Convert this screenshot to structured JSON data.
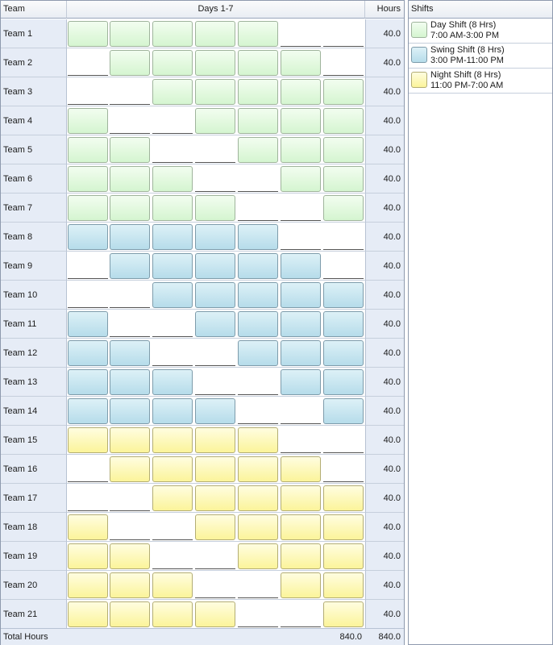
{
  "header": {
    "team_label": "Team",
    "days_label": "Days 1-7",
    "hours_label": "Hours"
  },
  "legend": {
    "title": "Shifts",
    "items": [
      {
        "type": "day",
        "name": "Day Shift (8 Hrs)",
        "time": "7:00 AM-3:00 PM",
        "color": "#d5f5d0"
      },
      {
        "type": "swing",
        "name": "Swing Shift (8 Hrs)",
        "time": "3:00 PM-11:00 PM",
        "color": "#b6dcea"
      },
      {
        "type": "night",
        "name": "Night Shift (8 Hrs)",
        "time": "11:00 PM-7:00 AM",
        "color": "#fbf49a"
      }
    ]
  },
  "teams": [
    {
      "name": "Team 1",
      "hours": "40.0",
      "shift": "day",
      "pattern": [
        1,
        1,
        1,
        1,
        1,
        0,
        0
      ]
    },
    {
      "name": "Team 2",
      "hours": "40.0",
      "shift": "day",
      "pattern": [
        0,
        1,
        1,
        1,
        1,
        1,
        0
      ]
    },
    {
      "name": "Team 3",
      "hours": "40.0",
      "shift": "day",
      "pattern": [
        0,
        0,
        1,
        1,
        1,
        1,
        1
      ]
    },
    {
      "name": "Team 4",
      "hours": "40.0",
      "shift": "day",
      "pattern": [
        1,
        0,
        0,
        1,
        1,
        1,
        1
      ]
    },
    {
      "name": "Team 5",
      "hours": "40.0",
      "shift": "day",
      "pattern": [
        1,
        1,
        0,
        0,
        1,
        1,
        1
      ]
    },
    {
      "name": "Team 6",
      "hours": "40.0",
      "shift": "day",
      "pattern": [
        1,
        1,
        1,
        0,
        0,
        1,
        1
      ]
    },
    {
      "name": "Team 7",
      "hours": "40.0",
      "shift": "day",
      "pattern": [
        1,
        1,
        1,
        1,
        0,
        0,
        1
      ]
    },
    {
      "name": "Team 8",
      "hours": "40.0",
      "shift": "swing",
      "pattern": [
        1,
        1,
        1,
        1,
        1,
        0,
        0
      ]
    },
    {
      "name": "Team 9",
      "hours": "40.0",
      "shift": "swing",
      "pattern": [
        0,
        1,
        1,
        1,
        1,
        1,
        0
      ]
    },
    {
      "name": "Team 10",
      "hours": "40.0",
      "shift": "swing",
      "pattern": [
        0,
        0,
        1,
        1,
        1,
        1,
        1
      ]
    },
    {
      "name": "Team 11",
      "hours": "40.0",
      "shift": "swing",
      "pattern": [
        1,
        0,
        0,
        1,
        1,
        1,
        1
      ]
    },
    {
      "name": "Team 12",
      "hours": "40.0",
      "shift": "swing",
      "pattern": [
        1,
        1,
        0,
        0,
        1,
        1,
        1
      ]
    },
    {
      "name": "Team 13",
      "hours": "40.0",
      "shift": "swing",
      "pattern": [
        1,
        1,
        1,
        0,
        0,
        1,
        1
      ]
    },
    {
      "name": "Team 14",
      "hours": "40.0",
      "shift": "swing",
      "pattern": [
        1,
        1,
        1,
        1,
        0,
        0,
        1
      ]
    },
    {
      "name": "Team 15",
      "hours": "40.0",
      "shift": "night",
      "pattern": [
        1,
        1,
        1,
        1,
        1,
        0,
        0
      ]
    },
    {
      "name": "Team 16",
      "hours": "40.0",
      "shift": "night",
      "pattern": [
        0,
        1,
        1,
        1,
        1,
        1,
        0
      ]
    },
    {
      "name": "Team 17",
      "hours": "40.0",
      "shift": "night",
      "pattern": [
        0,
        0,
        1,
        1,
        1,
        1,
        1
      ]
    },
    {
      "name": "Team 18",
      "hours": "40.0",
      "shift": "night",
      "pattern": [
        1,
        0,
        0,
        1,
        1,
        1,
        1
      ]
    },
    {
      "name": "Team 19",
      "hours": "40.0",
      "shift": "night",
      "pattern": [
        1,
        1,
        0,
        0,
        1,
        1,
        1
      ]
    },
    {
      "name": "Team 20",
      "hours": "40.0",
      "shift": "night",
      "pattern": [
        1,
        1,
        1,
        0,
        0,
        1,
        1
      ]
    },
    {
      "name": "Team 21",
      "hours": "40.0",
      "shift": "night",
      "pattern": [
        1,
        1,
        1,
        1,
        0,
        0,
        1
      ]
    }
  ],
  "totals": {
    "label": "Total Hours",
    "days_total": "840.0",
    "hours_total": "840.0"
  }
}
